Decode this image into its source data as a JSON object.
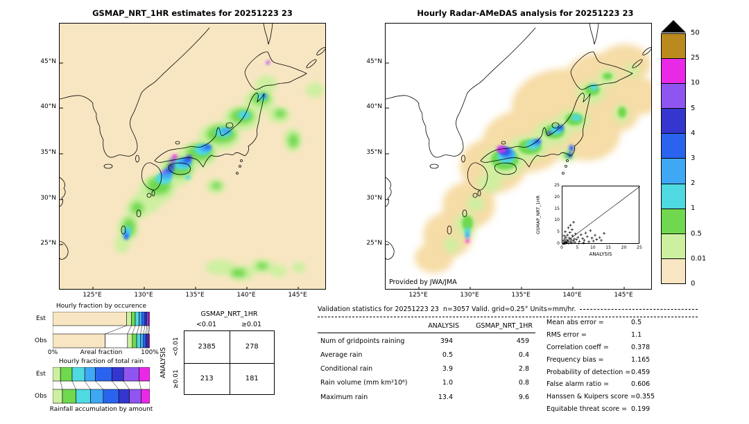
{
  "left_map": {
    "title": "GSMAP_NRT_1HR estimates for 20251223 23",
    "lat_ticks": [
      "45°N",
      "40°N",
      "35°N",
      "30°N",
      "25°N"
    ],
    "lon_ticks": [
      "125°E",
      "130°E",
      "135°E",
      "140°E",
      "145°E"
    ]
  },
  "right_map": {
    "title": "Hourly Radar-AMeDAS analysis for 20251223 23",
    "lat_ticks": [
      "45°N",
      "40°N",
      "35°N",
      "30°N",
      "25°N"
    ],
    "lon_ticks": [
      "125°E",
      "130°E",
      "135°E",
      "140°E",
      "145°E"
    ],
    "credit": "Provided by JWA/JMA",
    "inset": {
      "xlabel": "ANALYSIS",
      "ylabel": "GSMAP_NRT_1HR",
      "ticks": [
        "0",
        "5",
        "10",
        "15",
        "20",
        "25"
      ]
    }
  },
  "colorbar": {
    "tick_labels": [
      "50",
      "25",
      "10",
      "5",
      "4",
      "3",
      "2",
      "1",
      "0.5",
      "0.01",
      "0"
    ],
    "segments": [
      "#ba8a1e",
      "#e929e6",
      "#8f55f0",
      "#3436cf",
      "#2a64ee",
      "#3fa8f5",
      "#4fd9e0",
      "#70d84f",
      "#cdf0a0",
      "#f8e6c2"
    ]
  },
  "fraction_charts": {
    "occurrence": {
      "title": "Hourly fraction by occurence",
      "row_labels": [
        "Est",
        "Obs"
      ],
      "axis": {
        "left": "0%",
        "center": "Areal fraction",
        "right": "100%"
      },
      "est": [
        {
          "color": "#f8e6c2",
          "pct": 76
        },
        {
          "color": "#cdf0a0",
          "pct": 5
        },
        {
          "color": "#70d84f",
          "pct": 4
        },
        {
          "color": "#4fd9e0",
          "pct": 4
        },
        {
          "color": "#3fa8f5",
          "pct": 3
        },
        {
          "color": "#2a64ee",
          "pct": 3
        },
        {
          "color": "#3436cf",
          "pct": 2
        },
        {
          "color": "#8f55f0",
          "pct": 1.7
        },
        {
          "color": "#e929e6",
          "pct": 1.3
        }
      ],
      "obs": [
        {
          "color": "#f8e6c2",
          "pct": 54
        },
        {
          "color": "#ffffff",
          "pct": 23
        },
        {
          "color": "#cdf0a0",
          "pct": 5
        },
        {
          "color": "#70d84f",
          "pct": 4.5
        },
        {
          "color": "#4fd9e0",
          "pct": 4
        },
        {
          "color": "#3fa8f5",
          "pct": 3
        },
        {
          "color": "#2a64ee",
          "pct": 2.5
        },
        {
          "color": "#3436cf",
          "pct": 1.8
        },
        {
          "color": "#8f55f0",
          "pct": 1.2
        },
        {
          "color": "#e929e6",
          "pct": 1
        }
      ]
    },
    "total_rain": {
      "title": "Hourly fraction of total rain",
      "row_labels": [
        "Est",
        "Obs"
      ],
      "caption": "Rainfall accumulation by amount",
      "est": [
        {
          "color": "#cdf0a0",
          "pct": 8
        },
        {
          "color": "#70d84f",
          "pct": 12
        },
        {
          "color": "#4fd9e0",
          "pct": 13
        },
        {
          "color": "#3fa8f5",
          "pct": 11
        },
        {
          "color": "#2a64ee",
          "pct": 17
        },
        {
          "color": "#3436cf",
          "pct": 12
        },
        {
          "color": "#8f55f0",
          "pct": 16
        },
        {
          "color": "#e929e6",
          "pct": 11
        }
      ],
      "obs": [
        {
          "color": "#cdf0a0",
          "pct": 10
        },
        {
          "color": "#70d84f",
          "pct": 14
        },
        {
          "color": "#4fd9e0",
          "pct": 15
        },
        {
          "color": "#3fa8f5",
          "pct": 13
        },
        {
          "color": "#2a64ee",
          "pct": 16
        },
        {
          "color": "#3436cf",
          "pct": 11
        },
        {
          "color": "#8f55f0",
          "pct": 12
        },
        {
          "color": "#e929e6",
          "pct": 9
        }
      ]
    }
  },
  "contingency": {
    "col_group": "GSMAP_NRT_1HR",
    "row_group": "ANALYSIS",
    "col_labels": [
      "<0.01",
      "≥0.01"
    ],
    "row_labels": [
      "<0.01",
      "≥0.01"
    ],
    "values": [
      [
        "2385",
        "278"
      ],
      [
        "213",
        "181"
      ]
    ]
  },
  "validation": {
    "title": "Validation statistics for 20251223 23  n=3057 Valid. grid=0.25° Units=mm/hr.",
    "col_headers": [
      "ANALYSIS",
      "GSMAP_NRT_1HR"
    ],
    "rows": [
      {
        "label": "Num of gridpoints raining",
        "analysis": "394",
        "gsmap": "459"
      },
      {
        "label": "Average rain",
        "analysis": "0.5",
        "gsmap": "0.4"
      },
      {
        "label": "Conditional rain",
        "analysis": "3.9",
        "gsmap": "2.8"
      },
      {
        "label": "Rain volume (mm km²10⁶)",
        "analysis": "1.0",
        "gsmap": "0.8"
      },
      {
        "label": "Maximum rain",
        "analysis": "13.4",
        "gsmap": "9.6"
      }
    ],
    "scores": [
      {
        "label": "Mean abs error =",
        "value": "0.5"
      },
      {
        "label": "RMS error =",
        "value": "1.1"
      },
      {
        "label": "Correlation coeff =",
        "value": "0.378"
      },
      {
        "label": "Frequency bias =",
        "value": "1.165"
      },
      {
        "label": "Probability of detection =",
        "value": "0.459"
      },
      {
        "label": "False alarm ratio =",
        "value": "0.606"
      },
      {
        "label": "Hanssen & Kuipers score =",
        "value": "0.355"
      },
      {
        "label": "Equitable threat score =",
        "value": "0.199"
      }
    ]
  },
  "chart_data": [
    {
      "type": "heatmap",
      "title": "GSMAP_NRT_1HR estimates for 20251223 23",
      "x_ticks": [
        "125°E",
        "130°E",
        "135°E",
        "140°E",
        "145°E"
      ],
      "y_ticks": [
        "45°N",
        "40°N",
        "35°N",
        "30°N",
        "25°N"
      ],
      "units": "mm/hr",
      "colorbar_levels": [
        0,
        0.01,
        0.5,
        1,
        2,
        3,
        4,
        5,
        10,
        25,
        50
      ],
      "description": "Satellite rain-rate map over Japan; rain band from Kyushu northeast along Honshu to Hokkaido, peak cores 10-25 mm/hr"
    },
    {
      "type": "heatmap",
      "title": "Hourly Radar-AMeDAS analysis for 20251223 23",
      "x_ticks": [
        "125°E",
        "130°E",
        "135°E",
        "140°E",
        "145°E"
      ],
      "y_ticks": [
        "45°N",
        "40°N",
        "35°N",
        "30°N",
        "25°N"
      ],
      "units": "mm/hr",
      "credit": "Provided by JWA/JMA",
      "description": "Radar analysis rain-rate map with same rain band; magenta maxima near western Honshu and Okinawa"
    },
    {
      "type": "scatter",
      "title": "GSMAP_NRT_1HR vs ANALYSIS",
      "xlabel": "ANALYSIS",
      "ylabel": "GSMAP_NRT_1HR",
      "xlim": [
        0,
        25
      ],
      "ylim": [
        0,
        25
      ],
      "identity_line": true,
      "points": [
        [
          0.2,
          0.1
        ],
        [
          0.3,
          0.5
        ],
        [
          0.5,
          0.2
        ],
        [
          0.6,
          0.8
        ],
        [
          0.8,
          0.4
        ],
        [
          1,
          1.2
        ],
        [
          1.2,
          0.6
        ],
        [
          1.4,
          2
        ],
        [
          1.5,
          0.9
        ],
        [
          1.8,
          1.5
        ],
        [
          2,
          0.5
        ],
        [
          2.2,
          2.8
        ],
        [
          2.5,
          1.2
        ],
        [
          2.8,
          2.1
        ],
        [
          3,
          0.8
        ],
        [
          3.2,
          3.8
        ],
        [
          3.5,
          1.6
        ],
        [
          3.8,
          2.4
        ],
        [
          4,
          1
        ],
        [
          4.2,
          4.6
        ],
        [
          4.5,
          2.2
        ],
        [
          5,
          3.1
        ],
        [
          5.5,
          1.4
        ],
        [
          6,
          4.2
        ],
        [
          6.5,
          2.6
        ],
        [
          7,
          1.8
        ],
        [
          7.5,
          5
        ],
        [
          8,
          3.4
        ],
        [
          8.5,
          1.2
        ],
        [
          9,
          6
        ],
        [
          9.5,
          2.8
        ],
        [
          10,
          1.5
        ],
        [
          10.5,
          4
        ],
        [
          11,
          2.2
        ],
        [
          12,
          3
        ],
        [
          12.5,
          1.8
        ],
        [
          13.4,
          4.8
        ],
        [
          0.4,
          1.6
        ],
        [
          0.7,
          2.4
        ],
        [
          1.1,
          3.2
        ],
        [
          1.6,
          4.1
        ],
        [
          2.4,
          5.2
        ],
        [
          3.1,
          6.4
        ],
        [
          1.9,
          7.2
        ],
        [
          2.6,
          8.3
        ],
        [
          3.6,
          9.6
        ],
        [
          0.9,
          5.5
        ],
        [
          0.5,
          3.8
        ],
        [
          5.2,
          0.4
        ],
        [
          6.8,
          0.7
        ]
      ]
    },
    {
      "type": "table",
      "name": "contingency_table",
      "col_group": "GSMAP_NRT_1HR",
      "row_group": "ANALYSIS",
      "col_labels": [
        "<0.01",
        "≥0.01"
      ],
      "row_labels": [
        "<0.01",
        "≥0.01"
      ],
      "values": [
        [
          2385,
          278
        ],
        [
          213,
          181
        ]
      ]
    },
    {
      "type": "table",
      "name": "validation_statistics",
      "title": "Validation statistics for 20251223 23  n=3057 Valid. grid=0.25° Units=mm/hr.",
      "columns": [
        "ANALYSIS",
        "GSMAP_NRT_1HR"
      ],
      "rows": [
        [
          "Num of gridpoints raining",
          394,
          459
        ],
        [
          "Average rain",
          0.5,
          0.4
        ],
        [
          "Conditional rain",
          3.9,
          2.8
        ],
        [
          "Rain volume (mm km²10⁶)",
          1.0,
          0.8
        ],
        [
          "Maximum rain",
          13.4,
          9.6
        ]
      ],
      "scores": {
        "Mean abs error": 0.5,
        "RMS error": 1.1,
        "Correlation coeff": 0.378,
        "Frequency bias": 1.165,
        "Probability of detection": 0.459,
        "False alarm ratio": 0.606,
        "Hanssen & Kuipers score": 0.355,
        "Equitable threat score": 0.199
      }
    },
    {
      "type": "bar",
      "name": "hourly_fraction_stacked_bars",
      "charts": [
        "Hourly fraction by occurence",
        "Hourly fraction of total rain"
      ],
      "rows": [
        "Est",
        "Obs"
      ],
      "x_axis": "Areal fraction (0% to 100%) / Rainfall accumulation by amount",
      "note": "Stacked horizontal bars colored by the rain-rate colorbar classes; segment widths estimated from pixels"
    }
  ]
}
